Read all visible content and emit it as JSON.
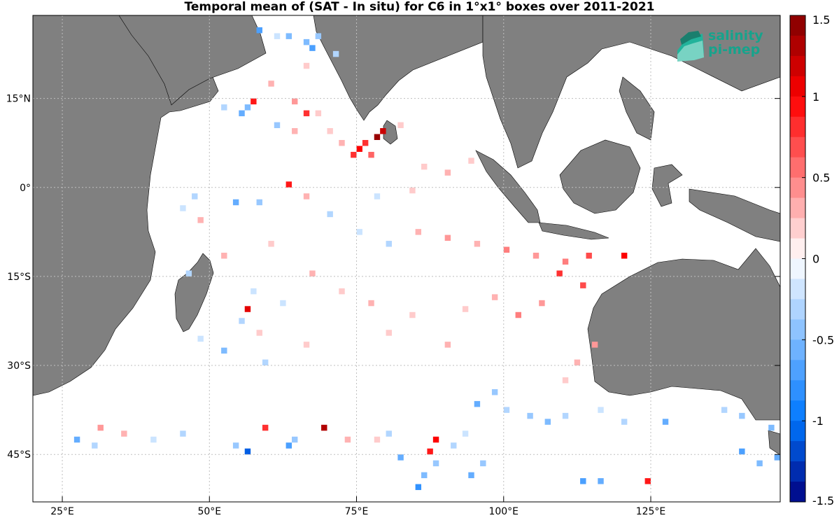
{
  "title": "Temporal mean of (SAT - In situ) for C6 in 1°x1° boxes over 2011-2021",
  "axes": {
    "lon_ticks": [
      {
        "value": 25,
        "label": "25°E"
      },
      {
        "value": 50,
        "label": "50°E"
      },
      {
        "value": 75,
        "label": "75°E"
      },
      {
        "value": 100,
        "label": "100°E"
      },
      {
        "value": 125,
        "label": "125°E"
      }
    ],
    "lat_ticks": [
      {
        "value": 15,
        "label": "15°N"
      },
      {
        "value": 0,
        "label": "0°"
      },
      {
        "value": -15,
        "label": "15°S"
      },
      {
        "value": -30,
        "label": "30°S"
      },
      {
        "value": -45,
        "label": "45°S"
      }
    ],
    "lon_range": [
      20,
      147
    ],
    "lat_range": [
      -53,
      29
    ]
  },
  "colorbar": {
    "range": [
      -1.5,
      1.5
    ],
    "tick_labels": [
      "1.5",
      "1",
      "0.5",
      "0",
      "-0.5",
      "-1",
      "-1.5"
    ],
    "tick_values": [
      1.5,
      1,
      0.5,
      0,
      -0.5,
      -1,
      -1.5
    ]
  },
  "logo": {
    "line1": "salinity",
    "line2": "pi-mep"
  },
  "colors": {
    "land": "#808080",
    "ocean": "#ffffff",
    "grid": "#bfbfbf"
  },
  "chart_data": {
    "type": "heatmap",
    "title": "Temporal mean of (SAT - In situ) for C6 in 1°x1° boxes over 2011-2021",
    "x_unit": "longitude (°E)",
    "y_unit": "latitude (°)",
    "value_range": [
      -1.5,
      1.5
    ],
    "grid": true,
    "cells": [
      [
        58,
        26,
        -0.7
      ],
      [
        61,
        25,
        -0.2
      ],
      [
        63,
        25,
        -0.5
      ],
      [
        66,
        24,
        -0.5
      ],
      [
        67,
        23,
        -0.7
      ],
      [
        68,
        25,
        -0.4
      ],
      [
        71,
        22,
        -0.3
      ],
      [
        66,
        20,
        0.2
      ],
      [
        60,
        17,
        0.3
      ],
      [
        57,
        14,
        0.9
      ],
      [
        56,
        13,
        -0.5
      ],
      [
        55,
        12,
        -0.6
      ],
      [
        64,
        14,
        0.4
      ],
      [
        66,
        12,
        0.8
      ],
      [
        78,
        8,
        1.4
      ],
      [
        79,
        9,
        1.2
      ],
      [
        76,
        7,
        0.8
      ],
      [
        75,
        6,
        1.0
      ],
      [
        74,
        5,
        0.8
      ],
      [
        77,
        5,
        0.6
      ],
      [
        72,
        7,
        0.3
      ],
      [
        70,
        9,
        0.2
      ],
      [
        63,
        0,
        0.9
      ],
      [
        66,
        -2,
        0.3
      ],
      [
        54,
        -3,
        -0.6
      ],
      [
        47,
        -2,
        -0.3
      ],
      [
        45,
        -4,
        -0.2
      ],
      [
        48,
        -6,
        0.3
      ],
      [
        58,
        -3,
        -0.4
      ],
      [
        70,
        -5,
        -0.3
      ],
      [
        85,
        -8,
        0.3
      ],
      [
        90,
        -9,
        0.4
      ],
      [
        95,
        -10,
        0.3
      ],
      [
        100,
        -11,
        0.5
      ],
      [
        105,
        -12,
        0.4
      ],
      [
        110,
        -13,
        0.5
      ],
      [
        114,
        -12,
        0.7
      ],
      [
        120,
        -12,
        1.0
      ],
      [
        109,
        -15,
        0.8
      ],
      [
        113,
        -17,
        0.7
      ],
      [
        106,
        -20,
        0.4
      ],
      [
        102,
        -22,
        0.5
      ],
      [
        98,
        -19,
        0.3
      ],
      [
        93,
        -21,
        0.2
      ],
      [
        56,
        -21,
        1.1
      ],
      [
        55,
        -23,
        -0.3
      ],
      [
        57,
        -18,
        -0.2
      ],
      [
        58,
        -25,
        0.2
      ],
      [
        48,
        -26,
        -0.2
      ],
      [
        52,
        -28,
        -0.5
      ],
      [
        59,
        -30,
        -0.3
      ],
      [
        66,
        -27,
        0.2
      ],
      [
        80,
        -25,
        0.2
      ],
      [
        90,
        -27,
        0.3
      ],
      [
        115,
        -27,
        0.4
      ],
      [
        112,
        -30,
        0.3
      ],
      [
        110,
        -33,
        0.2
      ],
      [
        98,
        -35,
        -0.4
      ],
      [
        95,
        -37,
        -0.6
      ],
      [
        100,
        -38,
        -0.3
      ],
      [
        104,
        -39,
        -0.4
      ],
      [
        107,
        -40,
        -0.5
      ],
      [
        110,
        -39,
        -0.3
      ],
      [
        116,
        -38,
        -0.2
      ],
      [
        120,
        -40,
        -0.3
      ],
      [
        127,
        -40,
        -0.6
      ],
      [
        137,
        -38,
        -0.3
      ],
      [
        140,
        -39,
        -0.4
      ],
      [
        145,
        -41,
        -0.5
      ],
      [
        69,
        -41,
        1.3
      ],
      [
        59,
        -41,
        0.8
      ],
      [
        64,
        -43,
        -0.4
      ],
      [
        63,
        -44,
        -0.7
      ],
      [
        56,
        -45,
        -1.1
      ],
      [
        54,
        -44,
        -0.4
      ],
      [
        88,
        -43,
        1.0
      ],
      [
        87,
        -45,
        0.9
      ],
      [
        91,
        -44,
        -0.3
      ],
      [
        93,
        -42,
        -0.2
      ],
      [
        82,
        -46,
        -0.6
      ],
      [
        88,
        -47,
        -0.4
      ],
      [
        96,
        -47,
        -0.4
      ],
      [
        94,
        -49,
        -0.6
      ],
      [
        85,
        -51,
        -0.8
      ],
      [
        86,
        -49,
        -0.5
      ],
      [
        113,
        -50,
        -0.7
      ],
      [
        116,
        -50,
        -0.6
      ],
      [
        124,
        -50,
        0.9
      ],
      [
        140,
        -45,
        -0.7
      ],
      [
        143,
        -47,
        -0.5
      ],
      [
        146,
        -46,
        -0.6
      ],
      [
        27,
        -43,
        -0.6
      ],
      [
        30,
        -44,
        -0.3
      ],
      [
        35,
        -42,
        0.3
      ],
      [
        40,
        -43,
        -0.2
      ],
      [
        45,
        -42,
        -0.3
      ],
      [
        31,
        -41,
        0.4
      ],
      [
        73,
        -43,
        0.3
      ],
      [
        78,
        -43,
        0.2
      ],
      [
        80,
        -42,
        -0.3
      ],
      [
        61,
        10,
        -0.4
      ],
      [
        52,
        13,
        -0.3
      ],
      [
        64,
        9,
        0.3
      ],
      [
        68,
        12,
        0.2
      ],
      [
        82,
        10,
        0.2
      ],
      [
        86,
        3,
        0.2
      ],
      [
        90,
        2,
        0.3
      ],
      [
        94,
        4,
        0.2
      ],
      [
        84,
        -1,
        0.2
      ],
      [
        78,
        -2,
        -0.2
      ],
      [
        75,
        -8,
        -0.2
      ],
      [
        80,
        -10,
        -0.3
      ],
      [
        60,
        -10,
        0.2
      ],
      [
        52,
        -12,
        0.3
      ],
      [
        46,
        -15,
        -0.3
      ],
      [
        67,
        -15,
        0.3
      ],
      [
        72,
        -18,
        0.2
      ],
      [
        77,
        -20,
        0.3
      ],
      [
        84,
        -22,
        0.2
      ],
      [
        62,
        -20,
        -0.2
      ]
    ]
  }
}
